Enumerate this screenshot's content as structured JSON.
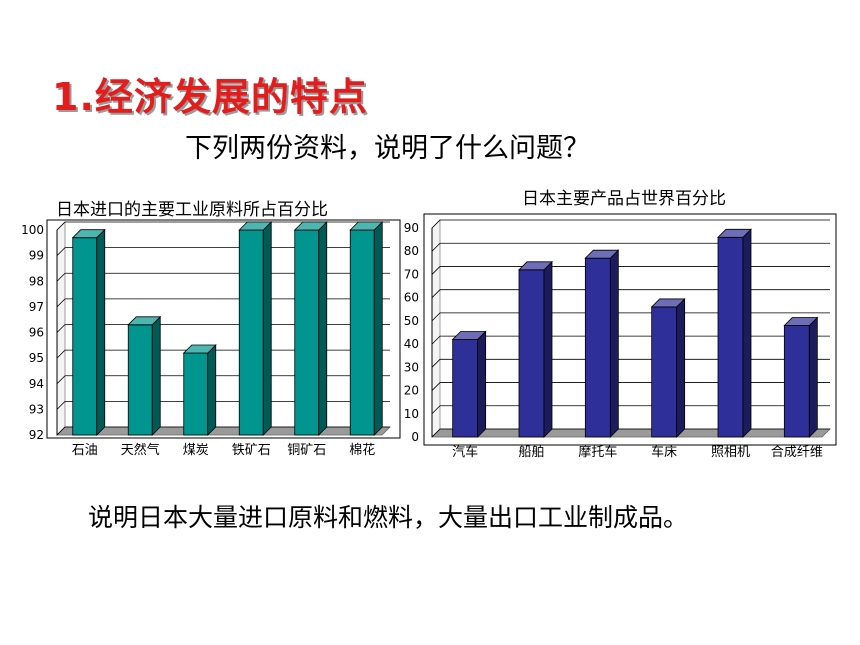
{
  "slide": {
    "heading": "1.经济发展的特点",
    "question": "下列两份资料，说明了什么问题？",
    "conclusion": "说明日本大量进口原料和燃料，大量出口工业制成品。"
  },
  "colors": {
    "heading": "#e41c1c",
    "bars1": "#00968f",
    "bars2": "#2f2f9a"
  },
  "chart_data": [
    {
      "type": "bar",
      "title": "日本进口的主要工业原料所占百分比",
      "categories": [
        "石油",
        "天然气",
        "煤炭",
        "铁矿石",
        "铜矿石",
        "棉花"
      ],
      "values": [
        99.7,
        96.3,
        95.2,
        100,
        100,
        100
      ],
      "ylim": [
        92,
        100
      ],
      "yticks": [
        92,
        93,
        94,
        95,
        96,
        97,
        98,
        99,
        100
      ],
      "grid": true,
      "xlabel": "",
      "ylabel": ""
    },
    {
      "type": "bar",
      "title": "日本主要产品占世界百分比",
      "categories": [
        "汽车",
        "船舶",
        "摩托车",
        "车床",
        "照相机",
        "合成纤维"
      ],
      "values": [
        42,
        72,
        77,
        56,
        86,
        48
      ],
      "ylim": [
        0,
        90
      ],
      "yticks": [
        0,
        10,
        20,
        30,
        40,
        50,
        60,
        70,
        80,
        90
      ],
      "grid": true,
      "xlabel": "",
      "ylabel": ""
    }
  ]
}
